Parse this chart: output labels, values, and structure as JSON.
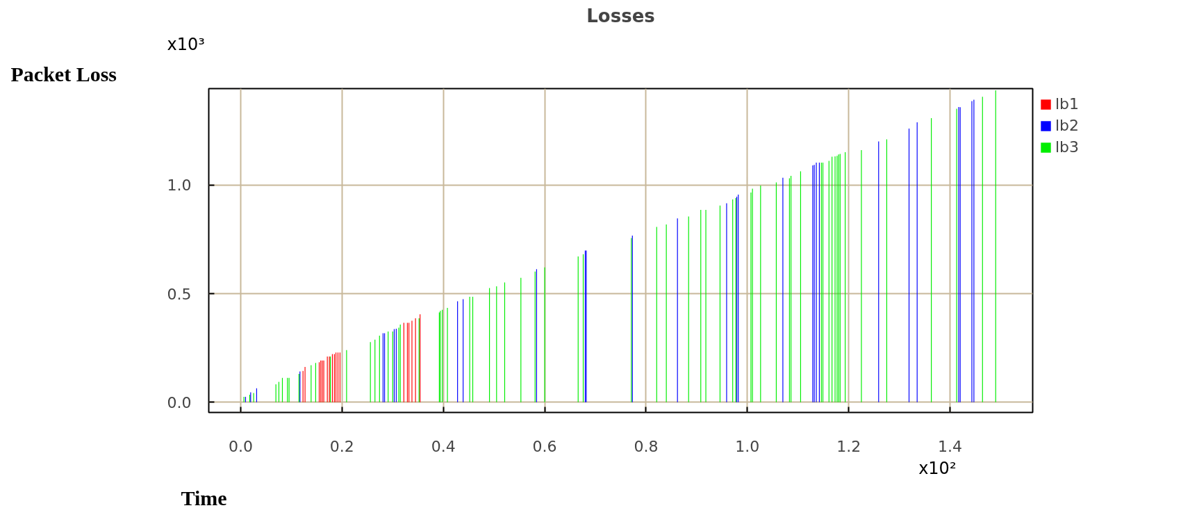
{
  "chart_data": {
    "type": "bar",
    "title": "Losses",
    "xlabel": "Time",
    "ylabel": "Packet Loss",
    "annotations": [
      "x10³",
      "x10²"
    ],
    "series": [
      {
        "name": "lb1",
        "color": "#ff0000",
        "x": [
          0.123,
          0.127,
          0.155,
          0.158,
          0.161,
          0.164,
          0.171,
          0.175,
          0.181,
          0.185,
          0.188,
          0.192,
          0.196,
          0.322,
          0.329,
          0.332,
          0.338,
          0.345,
          0.354
        ],
        "values": [
          0.144,
          0.163,
          0.184,
          0.192,
          0.192,
          0.192,
          0.211,
          0.211,
          0.222,
          0.222,
          0.229,
          0.229,
          0.229,
          0.366,
          0.366,
          0.366,
          0.376,
          0.387,
          0.405
        ]
      },
      {
        "name": "lb2",
        "color": "#0000ff",
        "x": [
          0.0096,
          0.0197,
          0.0315,
          0.117,
          0.281,
          0.284,
          0.303,
          0.307,
          0.428,
          0.439,
          0.584,
          0.68,
          0.682,
          0.773,
          0.862,
          0.959,
          0.979,
          0.982,
          1.07,
          1.129,
          1.132,
          1.136,
          1.142,
          1.259,
          1.319,
          1.335,
          1.417,
          1.42,
          1.443,
          1.447
        ],
        "values": [
          0.025,
          0.046,
          0.064,
          0.142,
          0.318,
          0.318,
          0.337,
          0.339,
          0.465,
          0.475,
          0.613,
          0.699,
          0.699,
          0.768,
          0.847,
          0.917,
          0.947,
          0.957,
          1.034,
          1.091,
          1.094,
          1.104,
          1.104,
          1.202,
          1.261,
          1.29,
          1.36,
          1.359,
          1.387,
          1.394
        ]
      },
      {
        "name": "lb3",
        "color": "#00ee00",
        "x": [
          0.0064,
          0.0178,
          0.0256,
          0.0695,
          0.0754,
          0.0823,
          0.0923,
          0.0955,
          0.115,
          0.139,
          0.148,
          0.177,
          0.209,
          0.256,
          0.265,
          0.274,
          0.291,
          0.3,
          0.312,
          0.315,
          0.352,
          0.392,
          0.394,
          0.398,
          0.408,
          0.452,
          0.458,
          0.491,
          0.505,
          0.521,
          0.553,
          0.581,
          0.6,
          0.666,
          0.676,
          0.771,
          0.821,
          0.84,
          0.884,
          0.908,
          0.918,
          0.946,
          0.971,
          0.977,
          1.007,
          1.01,
          1.026,
          1.057,
          1.083,
          1.086,
          1.105,
          1.146,
          1.149,
          1.161,
          1.167,
          1.173,
          1.177,
          1.18,
          1.183,
          1.193,
          1.225,
          1.275,
          1.363,
          1.413,
          1.464,
          1.49
        ],
        "values": [
          0.025,
          0.035,
          0.043,
          0.083,
          0.094,
          0.112,
          0.112,
          0.112,
          0.131,
          0.171,
          0.181,
          0.211,
          0.24,
          0.277,
          0.288,
          0.307,
          0.326,
          0.326,
          0.344,
          0.358,
          0.387,
          0.414,
          0.421,
          0.426,
          0.435,
          0.486,
          0.486,
          0.526,
          0.534,
          0.552,
          0.573,
          0.602,
          0.621,
          0.672,
          0.682,
          0.757,
          0.808,
          0.819,
          0.856,
          0.886,
          0.886,
          0.906,
          0.934,
          0.941,
          0.966,
          0.984,
          0.998,
          1.013,
          1.032,
          1.043,
          1.064,
          1.104,
          1.104,
          1.112,
          1.131,
          1.133,
          1.135,
          1.142,
          1.144,
          1.152,
          1.162,
          1.211,
          1.309,
          1.352,
          1.407,
          1.437
        ]
      }
    ],
    "xlim": [
      -0.063,
      1.563
    ],
    "ylim": [
      -0.047,
      1.445
    ],
    "xticks": [
      {
        "value": 0,
        "label": "0.0"
      },
      0.2,
      0.4,
      0.6,
      0.8,
      {
        "value": 1,
        "label": "1.0"
      },
      1.2,
      1.4
    ],
    "yticks": [
      {
        "value": 0,
        "label": "0.0"
      },
      0.5,
      {
        "value": 1,
        "label": "1.0"
      }
    ],
    "grid": true,
    "legend": "top right"
  }
}
